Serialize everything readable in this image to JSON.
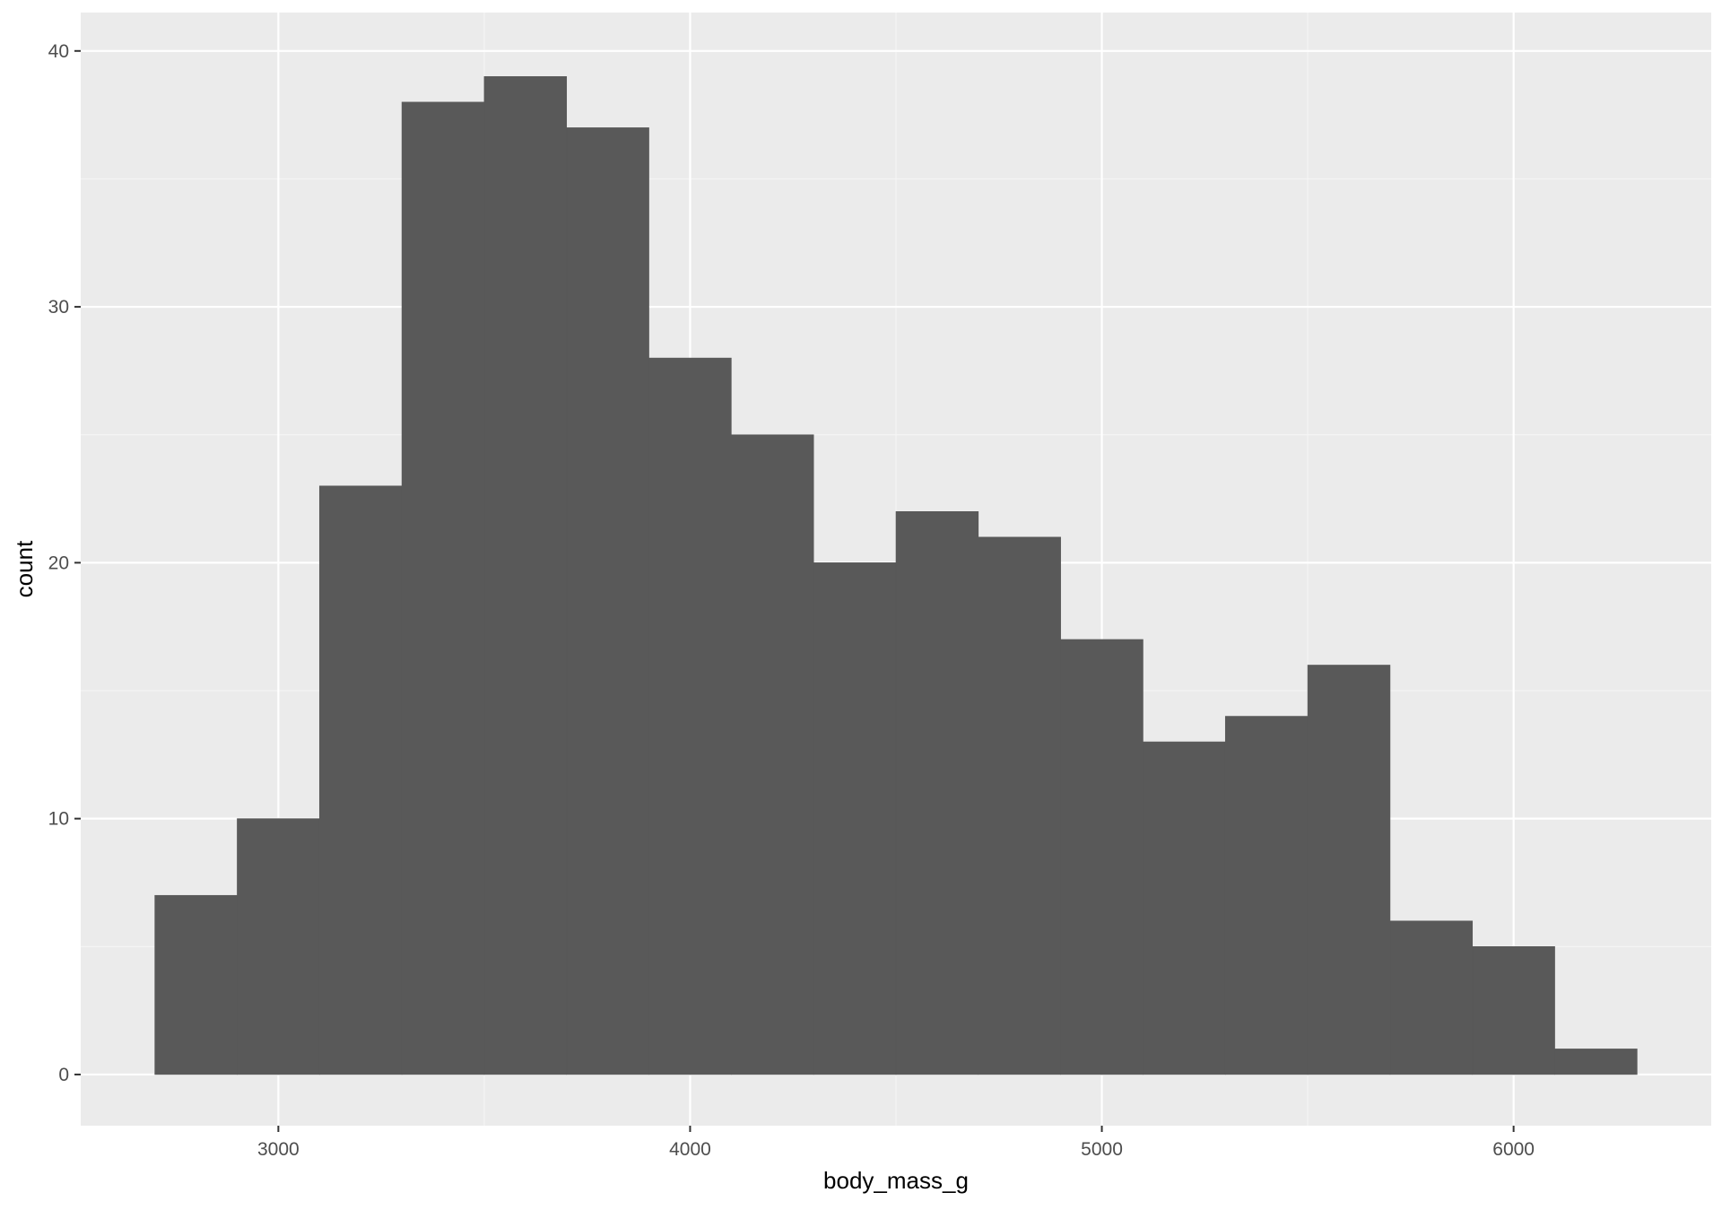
{
  "chart_data": {
    "type": "bar",
    "title": "",
    "xlabel": "body_mass_g",
    "ylabel": "count",
    "xlim": [
      2520,
      6480
    ],
    "ylim": [
      -2,
      41.5
    ],
    "x_ticks": [
      3000,
      4000,
      5000,
      6000
    ],
    "y_ticks": [
      0,
      10,
      20,
      30,
      40
    ],
    "grid": true,
    "bin_width": 200,
    "bins": [
      {
        "x0": 2700,
        "x1": 2900,
        "count": 7
      },
      {
        "x0": 2900,
        "x1": 3100,
        "count": 10
      },
      {
        "x0": 3100,
        "x1": 3300,
        "count": 23
      },
      {
        "x0": 3300,
        "x1": 3500,
        "count": 38
      },
      {
        "x0": 3500,
        "x1": 3700,
        "count": 39
      },
      {
        "x0": 3700,
        "x1": 3900,
        "count": 37
      },
      {
        "x0": 3900,
        "x1": 4100,
        "count": 28
      },
      {
        "x0": 4100,
        "x1": 4300,
        "count": 25
      },
      {
        "x0": 4300,
        "x1": 4500,
        "count": 20
      },
      {
        "x0": 4500,
        "x1": 4700,
        "count": 22
      },
      {
        "x0": 4700,
        "x1": 4900,
        "count": 21
      },
      {
        "x0": 4900,
        "x1": 5100,
        "count": 17
      },
      {
        "x0": 5100,
        "x1": 5300,
        "count": 13
      },
      {
        "x0": 5300,
        "x1": 5500,
        "count": 14
      },
      {
        "x0": 5500,
        "x1": 5700,
        "count": 16
      },
      {
        "x0": 5700,
        "x1": 5900,
        "count": 6
      },
      {
        "x0": 5900,
        "x1": 6100,
        "count": 5
      },
      {
        "x0": 6100,
        "x1": 6300,
        "count": 1
      }
    ],
    "colors": {
      "panel_background": "#EBEBEB",
      "major_grid": "#FFFFFF",
      "minor_grid": "#F5F5F5",
      "bar_fill": "#595959",
      "tick_text": "#4D4D4D",
      "tick_mark": "#333333",
      "axis_title": "#000000"
    }
  }
}
